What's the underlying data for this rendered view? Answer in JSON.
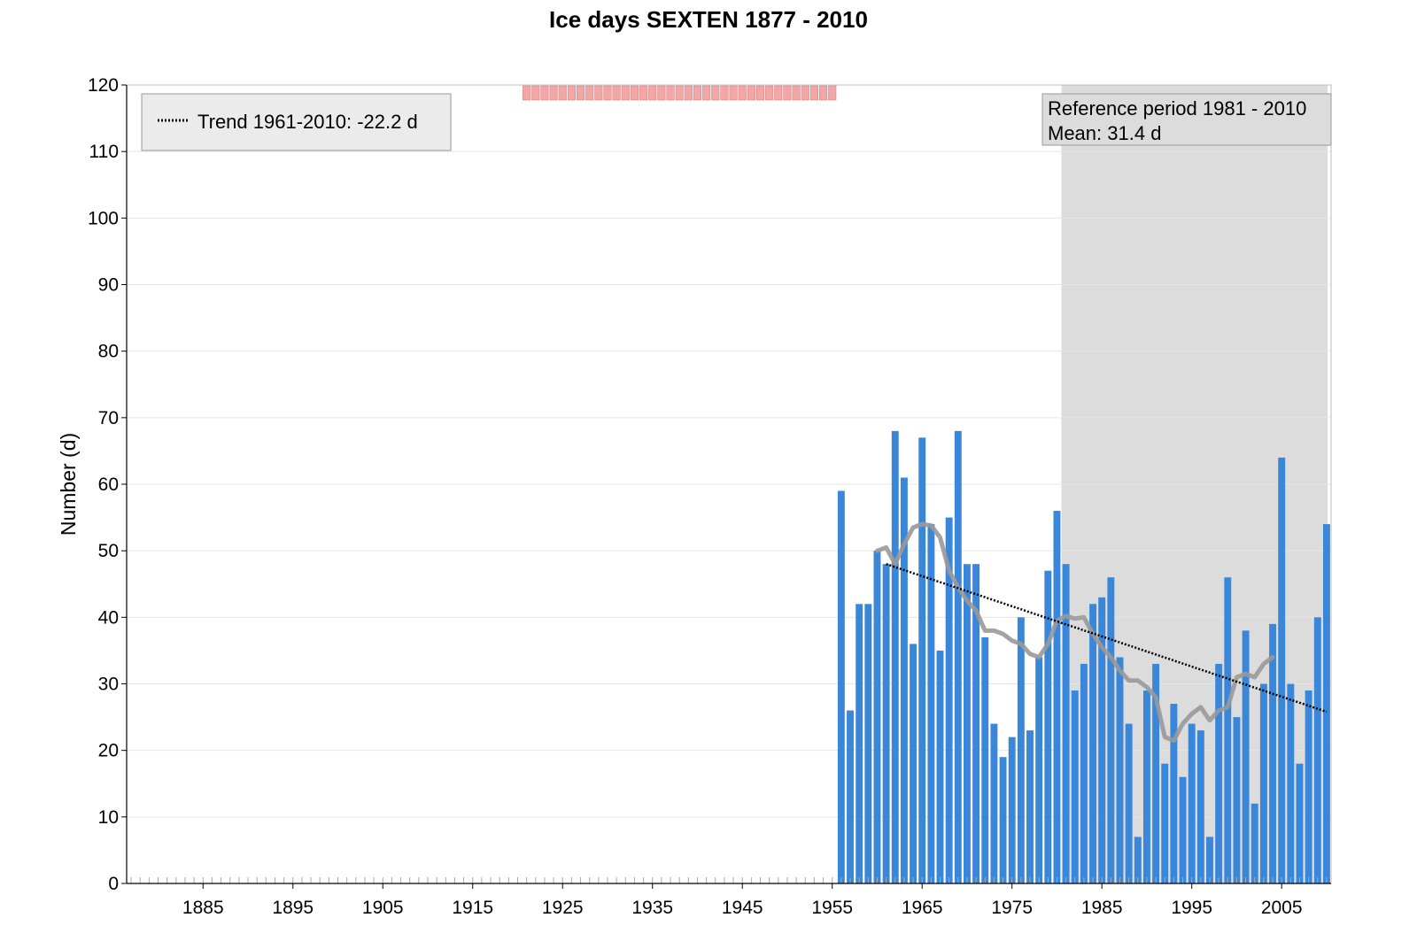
{
  "chart_data": {
    "type": "bar",
    "title": "Ice days SEXTEN 1877 - 2010",
    "xlabel": "",
    "ylabel": "Number (d)",
    "xlim": [
      1877,
      2010
    ],
    "ylim": [
      0,
      120
    ],
    "x_ticks": [
      1885,
      1895,
      1905,
      1915,
      1925,
      1935,
      1945,
      1955,
      1965,
      1975,
      1985,
      1995,
      2005
    ],
    "y_ticks": [
      0,
      10,
      20,
      30,
      40,
      50,
      60,
      70,
      80,
      90,
      100,
      110,
      120
    ],
    "grid": true,
    "colors": {
      "bars": "#3a87d9",
      "reference_shade": "#dcdcdc",
      "smoothed_line": "#999999",
      "trend_line": "#000000",
      "missing_marker": "#f2a6a6",
      "missing_marker_border": "#d98080"
    },
    "series": [
      {
        "name": "",
        "x": [
          1956,
          1957,
          1958,
          1959,
          1960,
          1961,
          1962,
          1963,
          1964,
          1965,
          1966,
          1967,
          1968,
          1969,
          1970,
          1971,
          1972,
          1973,
          1974,
          1975,
          1976,
          1977,
          1978,
          1979,
          1980,
          1981,
          1982,
          1983,
          1984,
          1985,
          1986,
          1987,
          1988,
          1989,
          1990,
          1991,
          1992,
          1993,
          1994,
          1995,
          1996,
          1997,
          1998,
          1999,
          2000,
          2001,
          2002,
          2003,
          2004,
          2005,
          2006,
          2007,
          2008,
          2009,
          2010
        ],
        "values": [
          59,
          26,
          42,
          42,
          50,
          48,
          68,
          61,
          36,
          67,
          54,
          35,
          55,
          68,
          48,
          48,
          37,
          24,
          19,
          22,
          40,
          23,
          34,
          47,
          56,
          48,
          29,
          33,
          42,
          43,
          46,
          34,
          24,
          7,
          29,
          33,
          18,
          27,
          16,
          24,
          23,
          7,
          33,
          46,
          25,
          38,
          12,
          30,
          39,
          64,
          30,
          18,
          29,
          40,
          54
        ]
      }
    ],
    "smoothed": {
      "x": [
        1960,
        1961,
        1962,
        1963,
        1964,
        1965,
        1966,
        1967,
        1968,
        1969,
        1970,
        1971,
        1972,
        1973,
        1974,
        1975,
        1976,
        1977,
        1978,
        1979,
        1980,
        1981,
        1982,
        1983,
        1984,
        1985,
        1986,
        1987,
        1988,
        1989,
        1990,
        1991,
        1992,
        1993,
        1994,
        1995,
        1996,
        1997,
        1998,
        1999,
        2000,
        2001,
        2002,
        2003,
        2004
      ],
      "values": [
        50,
        50.5,
        48,
        51,
        53.5,
        54,
        53.8,
        52,
        47,
        44.5,
        42.5,
        41,
        38,
        38,
        37.5,
        36.5,
        36,
        34.5,
        34,
        36,
        39.5,
        40.2,
        39.8,
        40,
        37.5,
        35.5,
        34,
        32,
        30.5,
        30.5,
        29.5,
        28,
        22,
        21.5,
        24,
        25.5,
        26.5,
        24.5,
        26,
        26.5,
        31,
        31.5,
        31,
        33,
        34
      ]
    },
    "trend": {
      "label": "Trend 1961-2010: -22.2 d",
      "x": [
        1961,
        2010
      ],
      "values": [
        48,
        25.8
      ]
    },
    "reference_period": {
      "start": 1981,
      "end": 2010,
      "label_line1": "Reference period 1981 - 2010",
      "label_line2": "Mean: 31.4 d"
    },
    "missing_years": [
      1921,
      1922,
      1923,
      1924,
      1925,
      1926,
      1927,
      1928,
      1929,
      1930,
      1931,
      1932,
      1933,
      1934,
      1935,
      1936,
      1937,
      1938,
      1939,
      1940,
      1941,
      1942,
      1943,
      1944,
      1945,
      1946,
      1947,
      1948,
      1949,
      1950,
      1951,
      1952,
      1953,
      1954,
      1955
    ],
    "legend_position": "top-left"
  }
}
